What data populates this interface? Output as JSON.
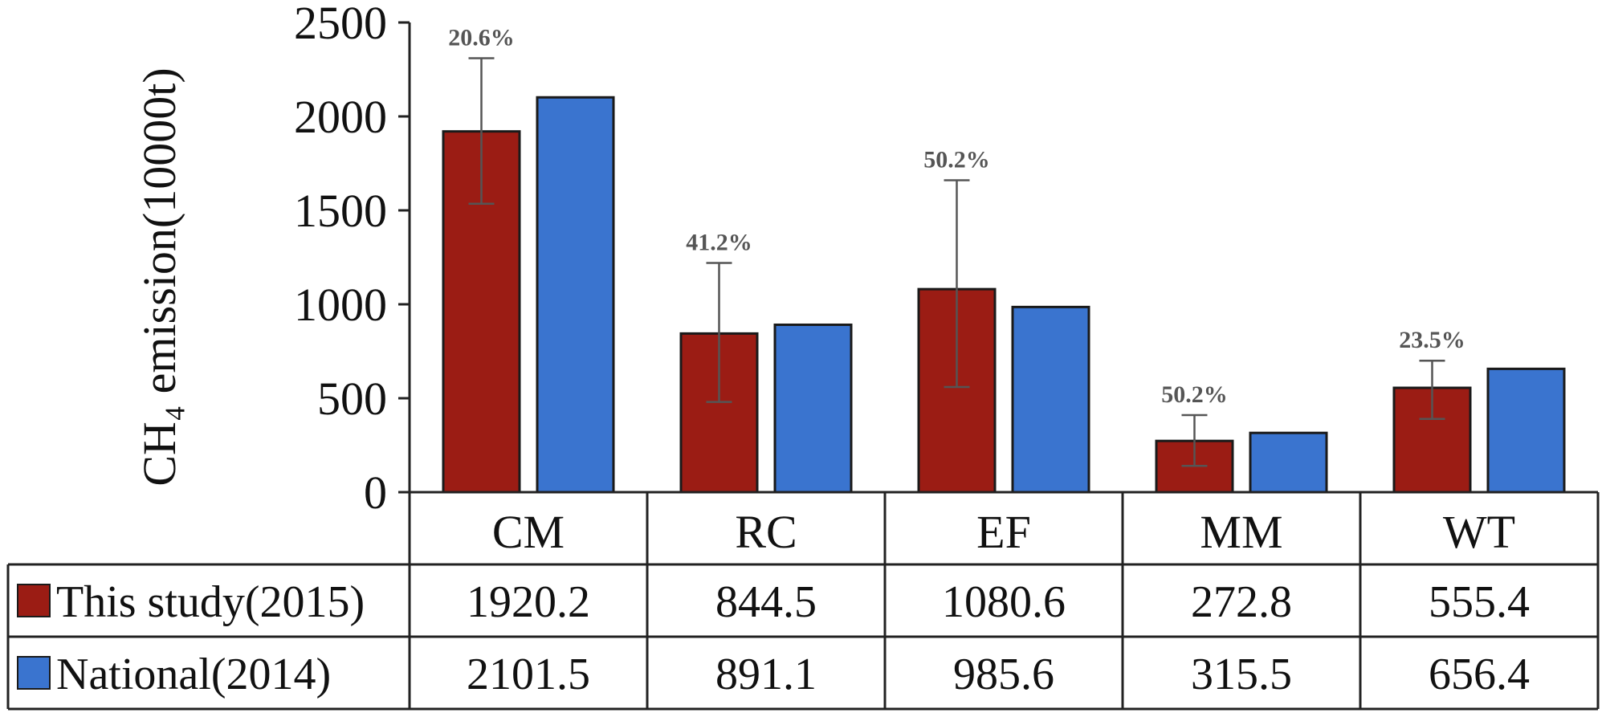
{
  "chart_data": {
    "type": "bar",
    "ylabel": "CH₄ emission(10000t)",
    "ylim": [
      0,
      2500
    ],
    "yticks": [
      0,
      500,
      1000,
      1500,
      2000,
      2500
    ],
    "categories": [
      "CM",
      "RC",
      "EF",
      "MM",
      "WT"
    ],
    "series": [
      {
        "name": "This study(2015)",
        "color": "#9b1c14",
        "values": [
          1920.2,
          844.5,
          1080.6,
          272.8,
          555.4
        ],
        "error_low": [
          1535,
          480,
          560,
          140,
          390
        ],
        "error_high": [
          2310,
          1220,
          1660,
          410,
          700
        ],
        "uncertainty_labels": [
          "20.6%",
          "41.2%",
          "50.2%",
          "50.2%",
          "23.5%"
        ]
      },
      {
        "name": "National(2014)",
        "color": "#3a74cf",
        "values": [
          2101.5,
          891.1,
          985.6,
          315.5,
          656.4
        ]
      }
    ],
    "data_table": {
      "rows": [
        [
          "1920.2",
          "844.5",
          "1080.6",
          "272.8",
          "555.4"
        ],
        [
          "2101.5",
          "891.1",
          "985.6",
          "315.5",
          "656.4"
        ]
      ]
    },
    "grid": false,
    "legend": "data-table"
  }
}
